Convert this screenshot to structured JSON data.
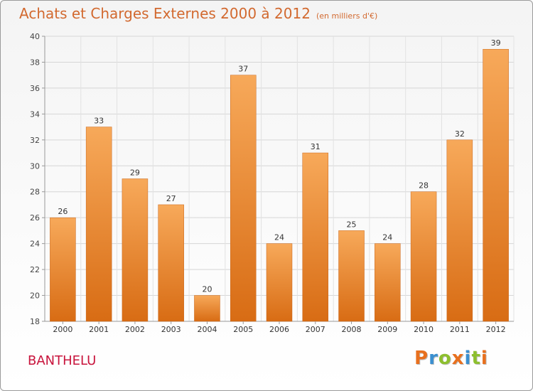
{
  "title": "Achats et Charges Externes 2000 à 2012",
  "subtitle": "(en milliers d'€)",
  "place_name": "BANTHELU",
  "logo": {
    "text": "Proxiti",
    "letters": [
      {
        "char": "P",
        "color": "#e8701e"
      },
      {
        "char": "r",
        "color": "#3a8fd0"
      },
      {
        "char": "o",
        "color": "#8dbf2e"
      },
      {
        "char": "x",
        "color": "#e8701e"
      },
      {
        "char": "i",
        "color": "#3a8fd0"
      },
      {
        "char": "t",
        "color": "#8dbf2e"
      },
      {
        "char": "i",
        "color": "#e8701e"
      }
    ]
  },
  "colors": {
    "bar": "#f08a2c",
    "bar_light": "#f7a95a",
    "bar_dark": "#d86c14",
    "title": "#d2692f",
    "place": "#c8143c"
  },
  "chart_data": {
    "type": "bar",
    "categories": [
      "2000",
      "2001",
      "2002",
      "2003",
      "2004",
      "2005",
      "2006",
      "2007",
      "2008",
      "2009",
      "2010",
      "2011",
      "2012"
    ],
    "values": [
      26,
      33,
      29,
      27,
      20,
      37,
      24,
      31,
      25,
      24,
      28,
      32,
      39
    ],
    "ylim": [
      18,
      40
    ],
    "yticks": [
      18,
      20,
      22,
      24,
      26,
      28,
      30,
      32,
      34,
      36,
      38,
      40
    ],
    "grid": true,
    "data_labels": true
  }
}
